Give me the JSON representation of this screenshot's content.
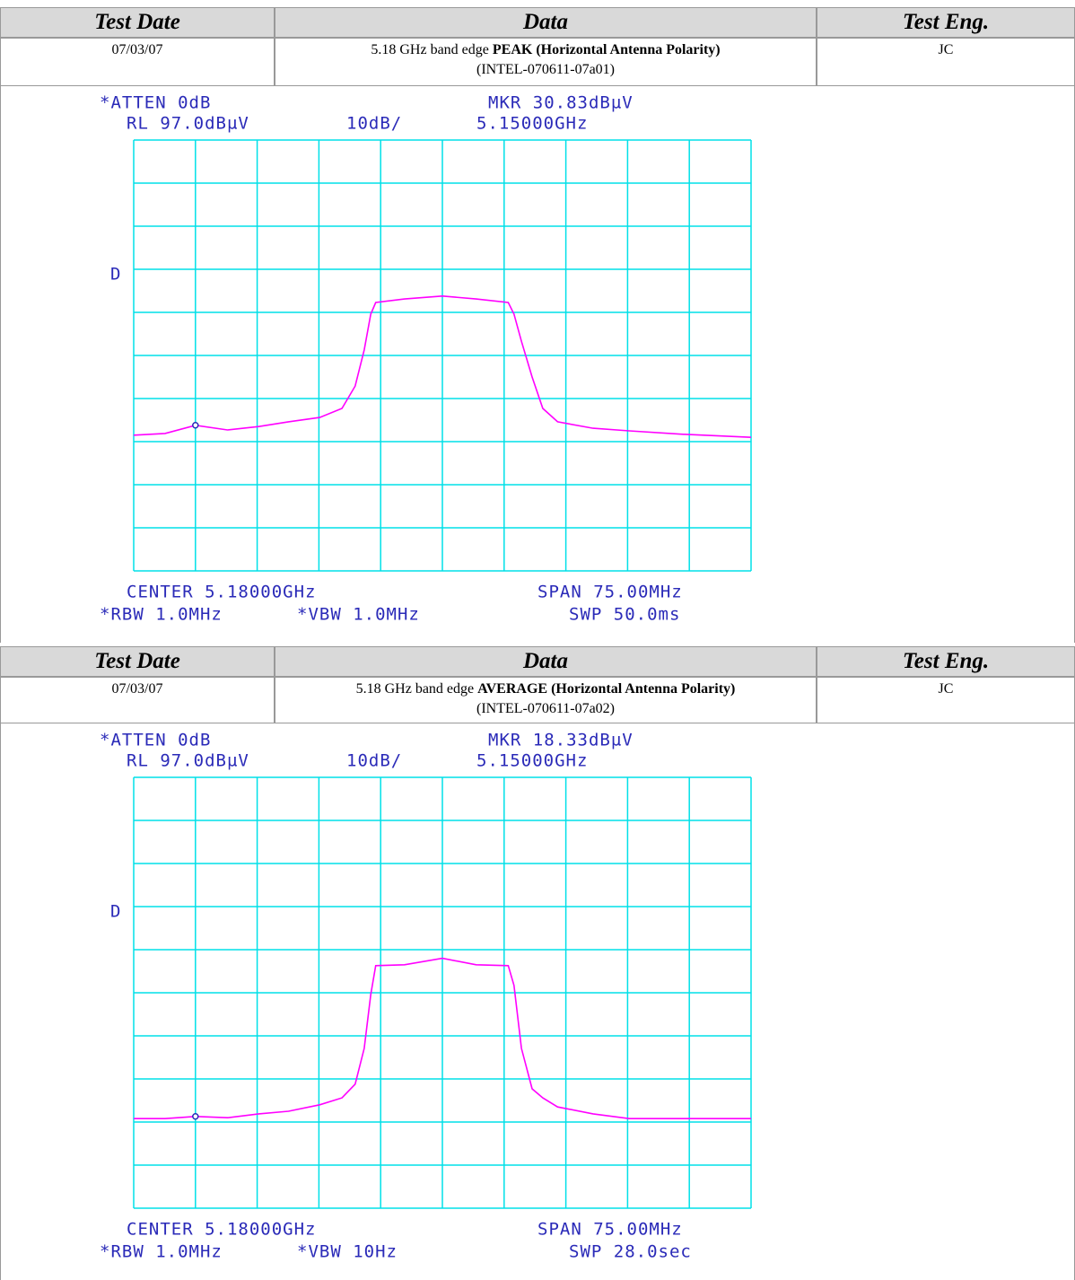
{
  "sections": [
    {
      "table": {
        "headers": [
          "Test Date",
          "Data",
          "Test Eng."
        ],
        "date": "07/03/07",
        "data": {
          "prefix": "5.18 GHz band edge ",
          "bold": "PEAK (Horizontal Antenna Polarity)",
          "ref": "(INTEL-070611-07a01)"
        },
        "engineer": "JC"
      },
      "plot": {
        "atten": "*ATTEN 0dB",
        "marker": "MKR 30.83dBµV",
        "ref_level": "RL 97.0dBµV",
        "scale": "10dB/",
        "marker_freq": "5.15000GHz",
        "detector": "D",
        "center": "CENTER 5.18000GHz",
        "span": "SPAN 75.00MHz",
        "rbw": "*RBW 1.0MHz",
        "vbw": "*VBW 1.0MHz",
        "sweep": "SWP 50.0ms",
        "xlim": [
          5.1425,
          5.2175
        ],
        "ylim": [
          -3,
          97
        ],
        "color": "#ff00ff",
        "grid_color": "#00e0e8",
        "marker_index": 2,
        "x": [
          5.1425,
          5.1463,
          5.15,
          5.1539,
          5.1577,
          5.1613,
          5.1651,
          5.1678,
          5.1694,
          5.1705,
          5.1713,
          5.1719,
          5.1754,
          5.18,
          5.1841,
          5.188,
          5.1887,
          5.1896,
          5.1909,
          5.1922,
          5.194,
          5.1983,
          5.2027,
          5.2092,
          5.2175
        ],
        "values": [
          28.5,
          28.9,
          30.8,
          29.7,
          30.5,
          31.6,
          32.6,
          34.7,
          39.9,
          48.3,
          56.6,
          59.3,
          60.1,
          60.8,
          60.1,
          59.3,
          56.6,
          50.3,
          42.0,
          34.7,
          31.6,
          30.1,
          29.5,
          28.7,
          28.0
        ]
      }
    },
    {
      "table": {
        "headers": [
          "Test Date",
          "Data",
          "Test Eng."
        ],
        "date": "07/03/07",
        "data": {
          "prefix": "5.18 GHz band edge ",
          "bold": "AVERAGE (Horizontal Antenna Polarity)",
          "ref": "(INTEL-070611-07a02)"
        },
        "engineer": "JC"
      },
      "plot": {
        "atten": "*ATTEN 0dB",
        "marker": "MKR 18.33dBµV",
        "ref_level": "RL 97.0dBµV",
        "scale": "10dB/",
        "marker_freq": "5.15000GHz",
        "detector": "D",
        "center": "CENTER 5.18000GHz",
        "span": "SPAN 75.00MHz",
        "rbw": "*RBW 1.0MHz",
        "vbw": "*VBW 10Hz",
        "sweep": "SWP 28.0sec",
        "xlim": [
          5.1425,
          5.2175
        ],
        "ylim": [
          -3,
          97
        ],
        "color": "#ff00ff",
        "grid_color": "#00e0e8",
        "marker_index": 2,
        "x": [
          5.1425,
          5.1463,
          5.15,
          5.1539,
          5.1577,
          5.1613,
          5.1651,
          5.1678,
          5.1694,
          5.1705,
          5.1713,
          5.1719,
          5.1754,
          5.18,
          5.1841,
          5.188,
          5.1887,
          5.1896,
          5.1909,
          5.1922,
          5.194,
          5.1983,
          5.2027,
          5.2092,
          5.2175
        ],
        "values": [
          17.8,
          17.8,
          18.3,
          18.0,
          18.9,
          19.5,
          21.0,
          22.6,
          25.8,
          34.1,
          46.6,
          53.3,
          53.5,
          55.0,
          53.5,
          53.3,
          48.7,
          34.1,
          24.7,
          22.6,
          20.5,
          18.9,
          17.8,
          17.8,
          17.8
        ]
      }
    }
  ]
}
